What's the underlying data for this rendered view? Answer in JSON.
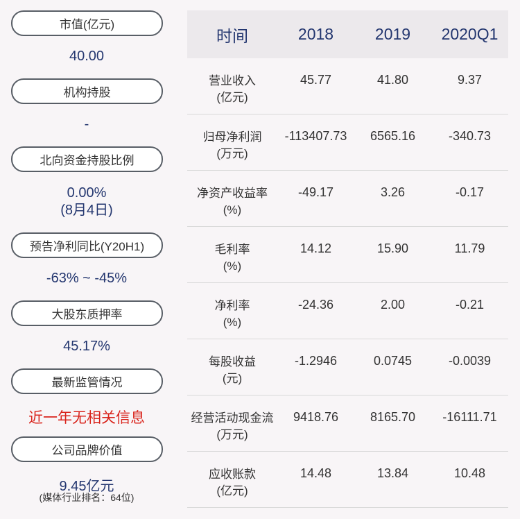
{
  "left": {
    "market_cap": {
      "label": "市值(亿元)",
      "value": "40.00"
    },
    "institution": {
      "label": "机构持股",
      "value": "-"
    },
    "northbound": {
      "label": "北向资金持股比例",
      "value": "0.00%",
      "sub": "(8月4日)"
    },
    "forecast": {
      "label": "预告净利同比(Y20H1)",
      "value": "-63% ~ -45%"
    },
    "pledge": {
      "label": "大股东质押率",
      "value": "45.17%"
    },
    "regulation": {
      "label": "最新监管情况",
      "value": "近一年无相关信息"
    },
    "brand": {
      "label": "公司品牌价值",
      "value": "9.45亿元",
      "note": "(媒体行业排名：64位)"
    }
  },
  "table": {
    "headers": [
      "时间",
      "2018",
      "2019",
      "2020Q1"
    ],
    "rows": [
      {
        "label": "营业收入",
        "unit": "(亿元)",
        "values": [
          "45.77",
          "41.80",
          "9.37"
        ]
      },
      {
        "label": "归母净利润",
        "unit": "(万元)",
        "values": [
          "-113407.73",
          "6565.16",
          "-340.73"
        ]
      },
      {
        "label": "净资产收益率",
        "unit": "(%)",
        "values": [
          "-49.17",
          "3.26",
          "-0.17"
        ]
      },
      {
        "label": "毛利率",
        "unit": "(%)",
        "values": [
          "14.12",
          "15.90",
          "11.79"
        ]
      },
      {
        "label": "净利率",
        "unit": "(%)",
        "values": [
          "-24.36",
          "2.00",
          "-0.21"
        ]
      },
      {
        "label": "每股收益",
        "unit": "(元)",
        "values": [
          "-1.2946",
          "0.0745",
          "-0.0039"
        ]
      },
      {
        "label": "经营活动现金流",
        "unit": "(万元)",
        "values": [
          "9418.76",
          "8165.70",
          "-16111.71"
        ]
      },
      {
        "label": "应收账款",
        "unit": "(亿元)",
        "values": [
          "14.48",
          "13.84",
          "10.48"
        ]
      }
    ]
  },
  "colors": {
    "value_blue": "#23366f",
    "alert_red": "#d9241c",
    "header_bg": "#ece9ec"
  }
}
